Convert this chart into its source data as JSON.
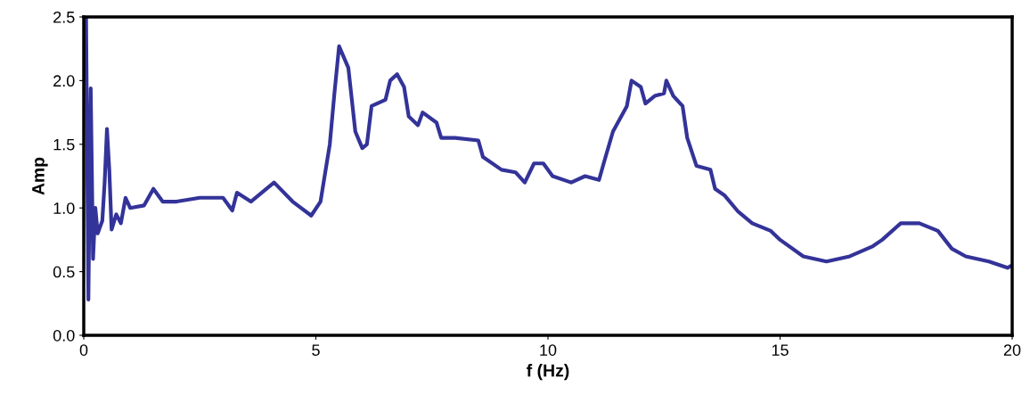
{
  "chart_data": {
    "type": "line",
    "xlabel": "f (Hz)",
    "ylabel": "Amp",
    "xlim": [
      0,
      20
    ],
    "xticks": [
      0,
      5,
      10,
      15,
      20
    ],
    "ylim": [
      0,
      2.5
    ],
    "yticks": [
      {
        "value": 0,
        "label": "0.0"
      },
      {
        "value": 0.5,
        "label": "0.5"
      },
      {
        "value": 1,
        "label": "1.0"
      },
      {
        "value": 1.5,
        "label": "1.5"
      },
      {
        "value": 2,
        "label": "2.0"
      },
      {
        "value": 2.5,
        "label": "2.5"
      }
    ],
    "grid": false,
    "legend": false,
    "marker": "none",
    "line_style": "solid",
    "series": [
      {
        "color": "#333399",
        "x": [
          0.02,
          0.05,
          0.1,
          0.15,
          0.2,
          0.25,
          0.3,
          0.35,
          0.4,
          0.45,
          0.5,
          0.55,
          0.6,
          0.7,
          0.8,
          0.9,
          1.0,
          1.3,
          1.5,
          1.7,
          2.0,
          2.5,
          3.0,
          3.2,
          3.3,
          3.6,
          4.1,
          4.5,
          4.9,
          5.1,
          5.3,
          5.4,
          5.5,
          5.7,
          5.85,
          6.0,
          6.1,
          6.2,
          6.5,
          6.6,
          6.75,
          6.9,
          7.0,
          7.2,
          7.3,
          7.6,
          7.7,
          8.0,
          8.5,
          8.6,
          9.0,
          9.3,
          9.5,
          9.7,
          9.9,
          10.1,
          10.5,
          10.8,
          11.1,
          11.2,
          11.4,
          11.7,
          11.8,
          12.0,
          12.1,
          12.3,
          12.5,
          12.55,
          12.7,
          12.9,
          13.0,
          13.2,
          13.5,
          13.6,
          13.8,
          14.1,
          14.4,
          14.8,
          15.0,
          15.5,
          16.0,
          16.5,
          17.0,
          17.2,
          17.6,
          18.0,
          18.4,
          18.7,
          19.0,
          19.5,
          19.9,
          20.0
        ],
        "values": [
          2.2,
          2.5,
          0.28,
          1.94,
          0.6,
          1.0,
          0.8,
          0.85,
          0.9,
          1.2,
          1.62,
          1.3,
          0.83,
          0.95,
          0.88,
          1.08,
          1.0,
          1.02,
          1.15,
          1.05,
          1.05,
          1.08,
          1.08,
          0.98,
          1.12,
          1.05,
          1.2,
          1.05,
          0.94,
          1.05,
          1.5,
          1.9,
          2.27,
          2.1,
          1.6,
          1.47,
          1.5,
          1.8,
          1.85,
          2.0,
          2.05,
          1.95,
          1.72,
          1.65,
          1.75,
          1.67,
          1.55,
          1.55,
          1.53,
          1.4,
          1.3,
          1.28,
          1.2,
          1.35,
          1.35,
          1.25,
          1.2,
          1.25,
          1.22,
          1.35,
          1.6,
          1.8,
          2.0,
          1.95,
          1.82,
          1.88,
          1.9,
          2.0,
          1.88,
          1.8,
          1.55,
          1.33,
          1.3,
          1.15,
          1.1,
          0.97,
          0.88,
          0.82,
          0.75,
          0.62,
          0.58,
          0.62,
          0.7,
          0.75,
          0.88,
          0.88,
          0.82,
          0.68,
          0.62,
          0.58,
          0.53,
          0.55
        ]
      }
    ]
  }
}
